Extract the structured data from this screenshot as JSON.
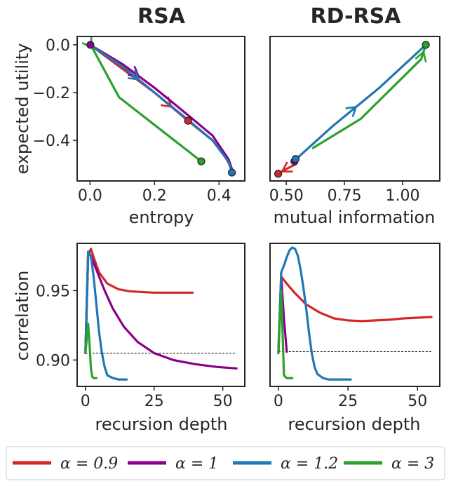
{
  "figure": {
    "legend": [
      {
        "label": "α = 0.9",
        "color": "#d62728"
      },
      {
        "label": "α = 1",
        "color": "#8b008b"
      },
      {
        "label": "α = 1.2",
        "color": "#1f77b4"
      },
      {
        "label": "α = 3",
        "color": "#2ca02c"
      }
    ]
  },
  "chart_data": [
    {
      "id": "rsa_tradeoff",
      "type": "line",
      "title": "RSA",
      "xlabel": "entropy",
      "ylabel": "expected utility",
      "xlim": [
        -0.04,
        0.48
      ],
      "ylim": [
        -0.57,
        0.035
      ],
      "xticks": [
        0.0,
        0.2,
        0.4
      ],
      "xtick_labels": [
        "0.0",
        "0.2",
        "0.4"
      ],
      "yticks": [
        0.0,
        -0.2,
        -0.4
      ],
      "ytick_labels": [
        "0.0",
        "−0.2",
        "−0.4"
      ],
      "grid": false,
      "series": [
        {
          "name": "α = 0.9",
          "color": "#d62728",
          "x": [
            0.0,
            0.1,
            0.2,
            0.304,
            0.38,
            0.42,
            0.44,
            0.448
          ],
          "y": [
            0.0,
            -0.1,
            -0.2,
            -0.318,
            -0.4,
            -0.47,
            -0.52,
            -0.54
          ],
          "marker": [
            0.304,
            -0.318
          ],
          "arrow_at": 2
        },
        {
          "name": "α = 1",
          "color": "#8b008b",
          "x": [
            0.0,
            0.1,
            0.2,
            0.3,
            0.38,
            0.43,
            0.445
          ],
          "y": [
            0.0,
            -0.08,
            -0.18,
            -0.29,
            -0.38,
            -0.48,
            -0.54
          ],
          "marker": [
            0.001,
            0.0
          ],
          "arrow_at": 1
        },
        {
          "name": "α = 1.2",
          "color": "#1f77b4",
          "x": [
            0.0,
            0.1,
            0.2,
            0.3,
            0.38,
            0.43,
            0.44
          ],
          "y": [
            0.0,
            -0.09,
            -0.2,
            -0.31,
            -0.4,
            -0.49,
            -0.535
          ],
          "marker": [
            0.44,
            -0.535
          ],
          "arrow_at": 1
        },
        {
          "name": "α = 3",
          "color": "#2ca02c",
          "x": [
            0.0,
            0.01,
            0.09,
            0.345
          ],
          "y": [
            0.0,
            -0.02,
            -0.22,
            -0.488
          ],
          "marker": [
            0.345,
            -0.488
          ],
          "arrow_at": 0
        }
      ]
    },
    {
      "id": "rdrsa_tradeoff",
      "type": "line",
      "title": "RD-RSA",
      "xlabel": "mutual information",
      "ylabel": "",
      "xlim": [
        0.43,
        1.16
      ],
      "ylim": [
        -0.57,
        0.035
      ],
      "xticks": [
        0.5,
        0.75,
        1.0
      ],
      "xtick_labels": [
        "0.50",
        "0.75",
        "1.00"
      ],
      "yticks": [],
      "grid": false,
      "series": [
        {
          "name": "α = 0.9",
          "color": "#d62728",
          "x": [
            0.54,
            0.5,
            0.465
          ],
          "y": [
            -0.5,
            -0.52,
            -0.54
          ],
          "marker": [
            0.465,
            -0.54
          ],
          "arrow_at": 1
        },
        {
          "name": "α = 1",
          "color": "#8b008b",
          "x": [
            0.535,
            0.535
          ],
          "y": [
            -0.482,
            -0.49
          ],
          "marker": [
            0.535,
            -0.488
          ],
          "arrow_at": -1
        },
        {
          "name": "α = 1.2",
          "color": "#1f77b4",
          "x": [
            0.54,
            0.7,
            0.9,
            1.1
          ],
          "y": [
            -0.48,
            -0.34,
            -0.18,
            0.0
          ],
          "marker": [
            0.54,
            -0.478
          ],
          "arrow_at": 1
        },
        {
          "name": "α = 3",
          "color": "#2ca02c",
          "x": [
            0.615,
            0.82,
            1.08,
            1.1
          ],
          "y": [
            -0.432,
            -0.31,
            -0.06,
            0.0
          ],
          "marker": [
            1.1,
            0.0
          ],
          "arrow_at": 2
        }
      ]
    },
    {
      "id": "rsa_correlation",
      "type": "line",
      "title": "",
      "xlabel": "recursion depth",
      "ylabel": "correlation",
      "xlim": [
        -3,
        58
      ],
      "ylim": [
        0.881,
        0.984
      ],
      "xticks": [
        0,
        25,
        50
      ],
      "xtick_labels": [
        "0",
        "25",
        "50"
      ],
      "yticks": [
        0.95,
        0.9
      ],
      "ytick_labels": [
        "0.95",
        "0.90"
      ],
      "baseline": 0.905,
      "grid": false,
      "series": [
        {
          "name": "α = 0.9",
          "color": "#d62728",
          "x": [
            0,
            1,
            2,
            3,
            5,
            8,
            12,
            16,
            20,
            25,
            30,
            35,
            39
          ],
          "y": [
            0.905,
            0.975,
            0.98,
            0.974,
            0.963,
            0.955,
            0.951,
            0.9495,
            0.949,
            0.9485,
            0.9485,
            0.9485,
            0.9485
          ]
        },
        {
          "name": "α = 1",
          "color": "#8b008b",
          "x": [
            0,
            1,
            2,
            4,
            7,
            10,
            14,
            19,
            25,
            32,
            40,
            48,
            55
          ],
          "y": [
            0.905,
            0.978,
            0.975,
            0.965,
            0.95,
            0.937,
            0.924,
            0.913,
            0.905,
            0.9,
            0.897,
            0.895,
            0.894
          ]
        },
        {
          "name": "α = 1.2",
          "color": "#1f77b4",
          "x": [
            0,
            1,
            2,
            3,
            4,
            5,
            6,
            7,
            8,
            10,
            12,
            15
          ],
          "y": [
            0.905,
            0.978,
            0.975,
            0.96,
            0.94,
            0.92,
            0.905,
            0.895,
            0.889,
            0.887,
            0.886,
            0.886
          ]
        },
        {
          "name": "α = 3",
          "color": "#2ca02c",
          "x": [
            0,
            1,
            1.5,
            2,
            2.5,
            3,
            4
          ],
          "y": [
            0.905,
            0.926,
            0.912,
            0.894,
            0.888,
            0.887,
            0.887
          ]
        }
      ]
    },
    {
      "id": "rdrsa_correlation",
      "type": "line",
      "title": "",
      "xlabel": "recursion depth",
      "ylabel": "",
      "xlim": [
        -3,
        58
      ],
      "ylim": [
        0.881,
        0.984
      ],
      "xticks": [
        0,
        25,
        50
      ],
      "xtick_labels": [
        "0",
        "25",
        "50"
      ],
      "yticks": [],
      "baseline": 0.906,
      "grid": false,
      "series": [
        {
          "name": "α = 0.9",
          "color": "#d62728",
          "x": [
            0,
            1,
            3,
            6,
            10,
            15,
            20,
            25,
            30,
            35,
            40,
            45,
            50,
            55
          ],
          "y": [
            0.905,
            0.96,
            0.955,
            0.948,
            0.94,
            0.934,
            0.93,
            0.9285,
            0.928,
            0.9285,
            0.929,
            0.93,
            0.9305,
            0.931
          ]
        },
        {
          "name": "α = 1",
          "color": "#8b008b",
          "x": [
            0,
            1,
            2,
            3
          ],
          "y": [
            0.905,
            0.96,
            0.93,
            0.906
          ]
        },
        {
          "name": "α = 1.2",
          "color": "#1f77b4",
          "x": [
            0,
            1,
            2,
            3,
            4,
            5,
            6,
            7,
            8,
            9,
            10,
            11,
            12,
            13,
            14,
            16,
            18,
            22,
            26
          ],
          "y": [
            0.905,
            0.963,
            0.968,
            0.974,
            0.979,
            0.981,
            0.98,
            0.975,
            0.965,
            0.952,
            0.937,
            0.92,
            0.905,
            0.895,
            0.89,
            0.887,
            0.886,
            0.886,
            0.886
          ]
        },
        {
          "name": "α = 3",
          "color": "#2ca02c",
          "x": [
            0,
            1,
            1.5,
            2,
            3,
            5
          ],
          "y": [
            0.905,
            0.95,
            0.92,
            0.889,
            0.887,
            0.887
          ]
        }
      ]
    }
  ]
}
